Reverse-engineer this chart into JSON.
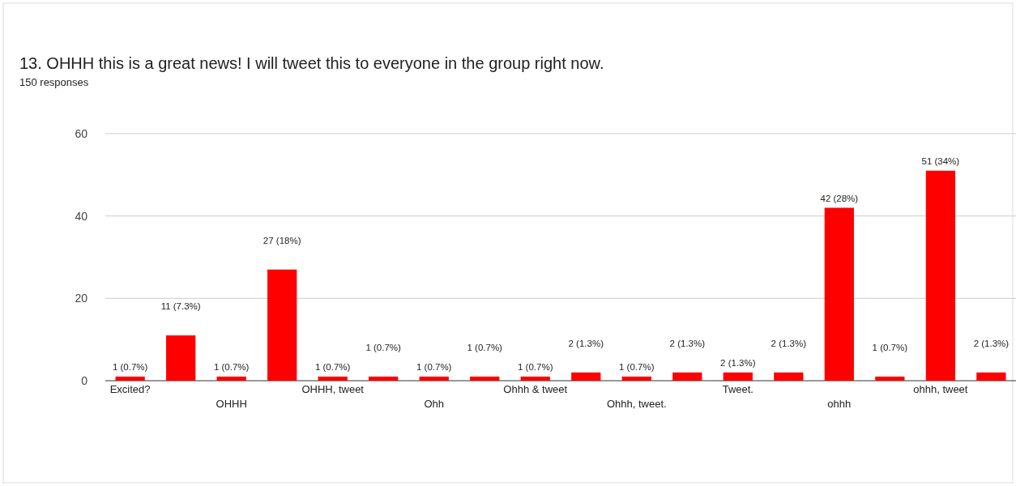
{
  "chart_data": {
    "type": "bar",
    "title": "13. OHHH this is a great news! I will tweet this to everyone in the group right now.",
    "subtitle": "150 responses",
    "categories": [
      "Excited?",
      null,
      "OHHH",
      null,
      "OHHH, tweet",
      null,
      "Ohh",
      null,
      "Ohhh & tweet",
      null,
      "Ohhh, tweet.",
      null,
      "Tweet.",
      null,
      "ohhh",
      null,
      "ohhh, tweet",
      null
    ],
    "values": [
      1,
      11,
      1,
      27,
      1,
      1,
      1,
      1,
      1,
      2,
      1,
      2,
      2,
      2,
      42,
      1,
      51,
      2
    ],
    "value_labels": [
      "1 (0.7%)",
      "11 (7.3%)",
      "1 (0.7%)",
      "27 (18%)",
      "1 (0.7%)",
      "1 (0.7%)",
      "1 (0.7%)",
      "1 (0.7%)",
      "1 (0.7%)",
      "2 (1.3%)",
      "1 (0.7%)",
      "2 (1.3%)",
      "2 (1.3%)",
      "2 (1.3%)",
      "42 (28%)",
      "1 (0.7%)",
      "51 (34%)",
      "2 (1.3%)"
    ],
    "color": "#ff0000",
    "ylim": [
      0,
      60
    ],
    "yticks": [
      0,
      20,
      40,
      60
    ],
    "grid": "y"
  }
}
